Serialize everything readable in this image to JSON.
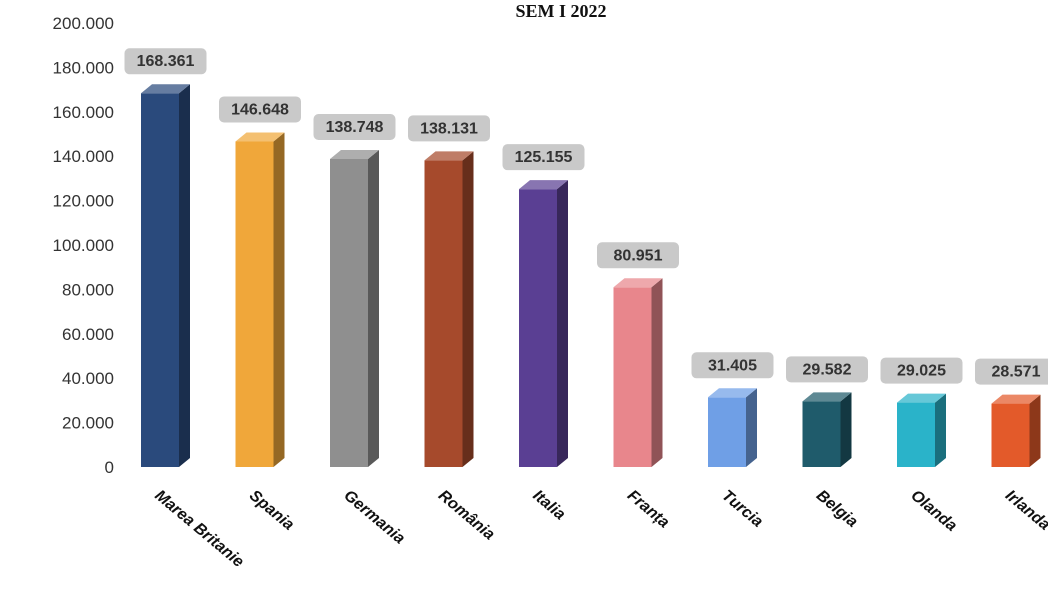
{
  "chart_data": {
    "type": "bar",
    "title": "SEM I 2022",
    "xlabel": "",
    "ylabel": "",
    "ylim": [
      0,
      200000
    ],
    "y_tick_values": [
      0,
      20000,
      40000,
      60000,
      80000,
      100000,
      120000,
      140000,
      160000,
      180000,
      200000
    ],
    "y_tick_labels": [
      "0",
      "20.000",
      "40.000",
      "60.000",
      "80.000",
      "100.000",
      "120.000",
      "140.000",
      "160.000",
      "180.000",
      "200.000"
    ],
    "grid": false,
    "legend": "none",
    "style": "3d-columns",
    "categories": [
      "Marea Britanie",
      "Spania",
      "Germania",
      "România",
      "Italia",
      "Franța",
      "Turcia",
      "Belgia",
      "Olanda",
      "Irlanda"
    ],
    "values": [
      168361,
      146648,
      138748,
      138131,
      125155,
      80951,
      31405,
      29582,
      29025,
      28571
    ],
    "data_labels": [
      "168.361",
      "146.648",
      "138.748",
      "138.131",
      "125.155",
      "80.951",
      "31.405",
      "29.582",
      "29.025",
      "28.571"
    ],
    "colors": [
      "#2a4a7c",
      "#f0a73a",
      "#8f8f8f",
      "#a64a2c",
      "#5a3f93",
      "#e8868c",
      "#6f9fe6",
      "#1f5b6b",
      "#2ab3c9",
      "#e35a2a"
    ]
  }
}
